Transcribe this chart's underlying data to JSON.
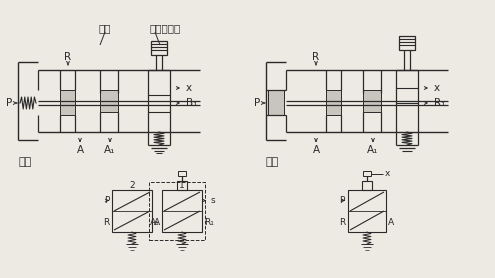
{
  "bg_color": "#ede9e3",
  "line_color": "#2a2a2a",
  "label_zhuyuan": "主阀",
  "label_pilot": "电磁先导阀",
  "label_duandian": "断电",
  "label_tongdian": "通电",
  "font_size": 7.5,
  "figsize": [
    4.95,
    2.78
  ],
  "dpi": 100
}
